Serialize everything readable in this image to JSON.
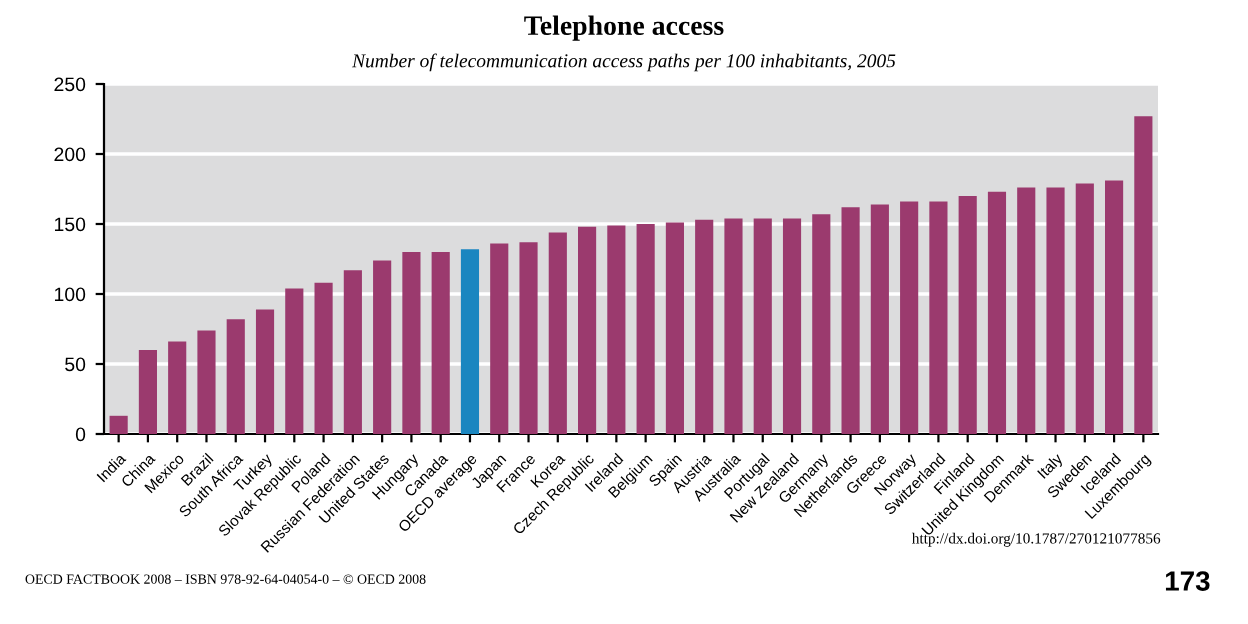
{
  "chart_data": {
    "type": "bar",
    "title": "Telephone access",
    "subtitle": "Number of telecommunication access paths per 100 inhabitants, 2005",
    "categories": [
      "India",
      "China",
      "Mexico",
      "Brazil",
      "South Africa",
      "Turkey",
      "Slovak Republic",
      "Poland",
      "Russian Federation",
      "United States",
      "Hungary",
      "Canada",
      "OECD average",
      "Japan",
      "France",
      "Korea",
      "Czech Republic",
      "Ireland",
      "Belgium",
      "Spain",
      "Austria",
      "Australia",
      "Portugal",
      "New Zealand",
      "Germany",
      "Netherlands",
      "Greece",
      "Norway",
      "Switzerland",
      "Finland",
      "United Kingdom",
      "Denmark",
      "Italy",
      "Sweden",
      "Iceland",
      "Luxembourg"
    ],
    "values": [
      13,
      60,
      66,
      74,
      82,
      89,
      104,
      108,
      117,
      124,
      130,
      130,
      132,
      136,
      137,
      144,
      148,
      149,
      150,
      151,
      153,
      154,
      154,
      154,
      157,
      162,
      164,
      166,
      166,
      170,
      173,
      176,
      176,
      179,
      181,
      227
    ],
    "colors": [
      "#9b3a6e",
      "#9b3a6e",
      "#9b3a6e",
      "#9b3a6e",
      "#9b3a6e",
      "#9b3a6e",
      "#9b3a6e",
      "#9b3a6e",
      "#9b3a6e",
      "#9b3a6e",
      "#9b3a6e",
      "#9b3a6e",
      "#1a86c0",
      "#9b3a6e",
      "#9b3a6e",
      "#9b3a6e",
      "#9b3a6e",
      "#9b3a6e",
      "#9b3a6e",
      "#9b3a6e",
      "#9b3a6e",
      "#9b3a6e",
      "#9b3a6e",
      "#9b3a6e",
      "#9b3a6e",
      "#9b3a6e",
      "#9b3a6e",
      "#9b3a6e",
      "#9b3a6e",
      "#9b3a6e",
      "#9b3a6e",
      "#9b3a6e",
      "#9b3a6e",
      "#9b3a6e",
      "#9b3a6e",
      "#9b3a6e"
    ],
    "ylim": [
      0,
      250
    ],
    "yticks": [
      0,
      50,
      100,
      150,
      200,
      250
    ],
    "grid": "y",
    "annotations": [
      "http://dx.doi.org/10.1787/270121077856",
      "OECD FACTBOOK 2008 – ISBN 978-92-64-04054-0 – © OECD 2008",
      "173"
    ]
  }
}
